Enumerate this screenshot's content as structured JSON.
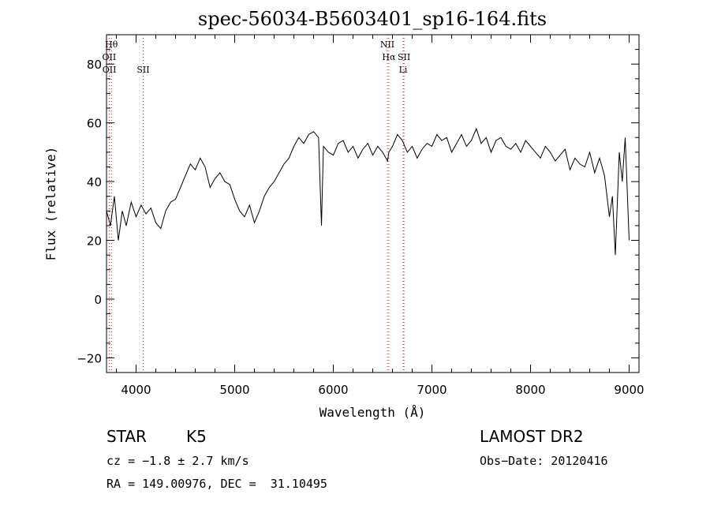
{
  "chart_data": {
    "type": "line",
    "title": "spec-56034-B5603401_sp16-164.fits",
    "xlabel": "Wavelength (Å)",
    "ylabel": "Flux (relative)",
    "xlim": [
      3700,
      9100
    ],
    "ylim": [
      -25,
      90
    ],
    "x_ticks": [
      4000,
      5000,
      6000,
      7000,
      8000,
      9000
    ],
    "y_ticks": [
      -20,
      0,
      20,
      40,
      60,
      80
    ],
    "grid": false,
    "line_color": "#000000",
    "marker_color": "#d62728",
    "series": [
      {
        "x": [
          3700,
          3740,
          3780,
          3820,
          3860,
          3900,
          3950,
          4000,
          4050,
          4100,
          4150,
          4200,
          4250,
          4300,
          4350,
          4400,
          4450,
          4500,
          4550,
          4600,
          4650,
          4700,
          4750,
          4800,
          4850,
          4900,
          4950,
          5000,
          5050,
          5100,
          5150,
          5200,
          5250,
          5300,
          5350,
          5400,
          5450,
          5500,
          5550,
          5600,
          5650,
          5700,
          5750,
          5800,
          5850,
          5880,
          5900,
          5950,
          6000,
          6050,
          6100,
          6150,
          6200,
          6250,
          6300,
          6350,
          6400,
          6450,
          6500,
          6550,
          6563,
          6600,
          6650,
          6700,
          6750,
          6800,
          6850,
          6900,
          6950,
          7000,
          7050,
          7100,
          7150,
          7200,
          7250,
          7300,
          7350,
          7400,
          7450,
          7500,
          7550,
          7600,
          7650,
          7700,
          7750,
          7800,
          7850,
          7900,
          7950,
          8000,
          8050,
          8100,
          8150,
          8200,
          8250,
          8300,
          8350,
          8400,
          8450,
          8500,
          8550,
          8600,
          8650,
          8700,
          8750,
          8800,
          8830,
          8860,
          8900,
          8930,
          8960,
          9000
        ],
        "y": [
          30,
          25,
          35,
          20,
          30,
          25,
          33,
          28,
          32,
          29,
          31,
          26,
          24,
          30,
          33,
          34,
          38,
          42,
          46,
          44,
          48,
          45,
          38,
          41,
          43,
          40,
          39,
          34,
          30,
          28,
          32,
          26,
          30,
          35,
          38,
          40,
          43,
          46,
          48,
          52,
          55,
          53,
          56,
          57,
          55,
          25,
          52,
          50,
          49,
          53,
          54,
          50,
          52,
          48,
          51,
          53,
          49,
          52,
          50,
          47,
          50,
          52,
          56,
          54,
          50,
          52,
          48,
          51,
          53,
          52,
          56,
          54,
          55,
          50,
          53,
          56,
          52,
          54,
          58,
          53,
          55,
          50,
          54,
          55,
          52,
          51,
          53,
          50,
          54,
          52,
          50,
          48,
          52,
          50,
          47,
          49,
          51,
          44,
          48,
          46,
          45,
          50,
          43,
          48,
          42,
          28,
          35,
          15,
          50,
          40,
          55,
          20
        ]
      }
    ],
    "line_markers": [
      {
        "label": "Hθ",
        "x": 3750,
        "row": 1
      },
      {
        "label": "OII",
        "x": 3727,
        "row": 2
      },
      {
        "label": "OII",
        "x": 3729,
        "row": 3
      },
      {
        "label": "SII",
        "x": 4072,
        "row": 3
      },
      {
        "label": "NII",
        "x": 6548,
        "row": 1
      },
      {
        "label": "Hα",
        "x": 6563,
        "row": 2
      },
      {
        "label": "SII",
        "x": 6717,
        "row": 2
      },
      {
        "label": "Li",
        "x": 6708,
        "row": 3
      }
    ]
  },
  "footer": {
    "object_class": "STAR",
    "subclass": "K5",
    "survey": "LAMOST DR2",
    "cz": "cz = −1.8 ± 2.7 km/s",
    "obs_date": "Obs−Date: 20120416",
    "coords": "RA = 149.00976, DEC =  31.10495"
  }
}
